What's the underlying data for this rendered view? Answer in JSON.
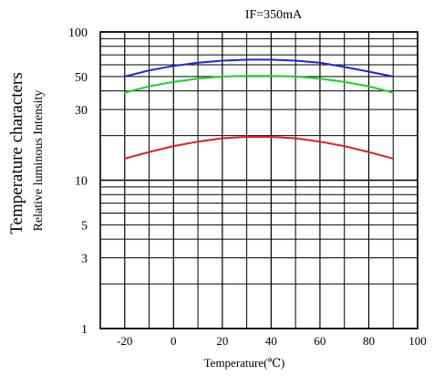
{
  "chart_data": {
    "type": "line",
    "title": "IF=350mA",
    "xlabel": "Temperature(℃)",
    "ylabel": "Temperature characters",
    "ylabel2": "Relative luminous Intensity",
    "xlim": [
      -30,
      100
    ],
    "ylim": [
      1,
      100
    ],
    "y_scale": "log",
    "grid": true,
    "x_ticks": [
      -20,
      0,
      20,
      40,
      60,
      80,
      100
    ],
    "x_tick_labels": [
      "-20",
      "0",
      "20",
      "40",
      "60",
      "80",
      "100"
    ],
    "y_ticks": [
      1,
      3,
      5,
      10,
      30,
      50,
      100
    ],
    "y_tick_labels": [
      "1",
      "3",
      "5",
      "10",
      "30",
      "50",
      "100"
    ],
    "series": [
      {
        "color": "#2020e0",
        "x": [
          -20,
          -10,
          0,
          10,
          20,
          30,
          40,
          50,
          60,
          70,
          80,
          90
        ],
        "y": [
          50,
          55,
          59,
          62,
          64,
          65,
          65,
          64,
          62,
          58,
          54,
          50
        ]
      },
      {
        "color": "#20d020",
        "x": [
          -20,
          -10,
          0,
          10,
          20,
          30,
          40,
          50,
          60,
          70,
          80,
          90
        ],
        "y": [
          39,
          43,
          46,
          48.5,
          50,
          50.5,
          50.5,
          50,
          48.5,
          46,
          43,
          39
        ]
      },
      {
        "color": "#e02020",
        "x": [
          -20,
          -10,
          0,
          10,
          20,
          30,
          40,
          50,
          60,
          70,
          80,
          90
        ],
        "y": [
          14,
          15.5,
          17,
          18.2,
          19.2,
          19.6,
          19.6,
          19.2,
          18.2,
          17,
          15.5,
          14
        ]
      }
    ]
  }
}
